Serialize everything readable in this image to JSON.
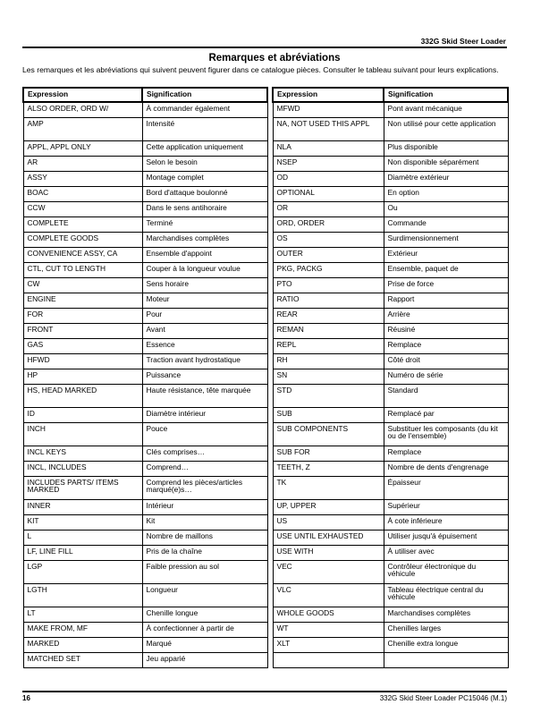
{
  "header": {
    "title": "332G Skid Steer Loader"
  },
  "page_title": "Remarques et abréviations",
  "intro": "Les remarques et les abréviations qui suivent peuvent figurer dans ce catalogue pièces.  Consulter le tableau suivant pour leurs explications.",
  "columns": {
    "expression": "Expression",
    "signification": "Signification"
  },
  "rows": [
    {
      "l": [
        "ALSO ORDER, ORD W/",
        "À commander également"
      ],
      "r": [
        "MFWD",
        "Pont avant mécanique"
      ]
    },
    {
      "l": [
        "AMP",
        "Intensité"
      ],
      "r": [
        "NA, NOT USED THIS APPL",
        "Non utilisé pour cette application"
      ],
      "tall": true
    },
    {
      "l": [
        "APPL, APPL ONLY",
        "Cette application uniquement"
      ],
      "r": [
        "NLA",
        "Plus disponible"
      ]
    },
    {
      "l": [
        "AR",
        "Selon le besoin"
      ],
      "r": [
        "NSEP",
        "Non disponible séparément"
      ]
    },
    {
      "l": [
        "ASSY",
        "Montage complet"
      ],
      "r": [
        "OD",
        "Diamètre extérieur"
      ]
    },
    {
      "l": [
        "BOAC",
        "Bord d'attaque boulonné"
      ],
      "r": [
        "OPTIONAL",
        "En option"
      ]
    },
    {
      "l": [
        "CCW",
        "Dans le sens antihoraire"
      ],
      "r": [
        "OR",
        "Ou"
      ]
    },
    {
      "l": [
        "COMPLETE",
        "Terminé"
      ],
      "r": [
        "ORD, ORDER",
        "Commande"
      ]
    },
    {
      "l": [
        "COMPLETE GOODS",
        "Marchandises complètes"
      ],
      "r": [
        "OS",
        "Surdimensionnement"
      ]
    },
    {
      "l": [
        "CONVENIENCE ASSY, CA",
        "Ensemble d'appoint"
      ],
      "r": [
        "OUTER",
        "Extérieur"
      ]
    },
    {
      "l": [
        "CTL, CUT TO LENGTH",
        "Couper à la longueur voulue"
      ],
      "r": [
        "PKG, PACKG",
        "Ensemble, paquet de"
      ]
    },
    {
      "l": [
        "CW",
        "Sens horaire"
      ],
      "r": [
        "PTO",
        "Prise de force"
      ]
    },
    {
      "l": [
        "ENGINE",
        "Moteur"
      ],
      "r": [
        "RATIO",
        "Rapport"
      ]
    },
    {
      "l": [
        "FOR",
        "Pour"
      ],
      "r": [
        "REAR",
        "Arrière"
      ]
    },
    {
      "l": [
        "FRONT",
        "Avant"
      ],
      "r": [
        "REMAN",
        "Réusiné"
      ]
    },
    {
      "l": [
        "GAS",
        "Essence"
      ],
      "r": [
        "REPL",
        "Remplace"
      ]
    },
    {
      "l": [
        "HFWD",
        "Traction avant hydrostatique"
      ],
      "r": [
        "RH",
        "Côté droit"
      ]
    },
    {
      "l": [
        "HP",
        "Puissance"
      ],
      "r": [
        "SN",
        "Numéro de série"
      ]
    },
    {
      "l": [
        "HS, HEAD MARKED",
        "Haute résistance, tête marquée"
      ],
      "r": [
        "STD",
        "Standard"
      ],
      "tall": true
    },
    {
      "l": [
        "ID",
        "Diamètre intérieur"
      ],
      "r": [
        "SUB",
        "Remplacé par"
      ]
    },
    {
      "l": [
        "INCH",
        "Pouce"
      ],
      "r": [
        "SUB COMPONENTS",
        "Substituer les composants (du kit ou de l'ensemble)"
      ],
      "tall": true
    },
    {
      "l": [
        "INCL KEYS",
        "Clés comprises…"
      ],
      "r": [
        "SUB FOR",
        "Remplace"
      ]
    },
    {
      "l": [
        "INCL, INCLUDES",
        "Comprend…"
      ],
      "r": [
        "TEETH, Z",
        "Nombre de dents d'engrenage"
      ]
    },
    {
      "l": [
        "INCLUDES PARTS/ ITEMS MARKED",
        "Comprend les pièces/articles marqué(e)s…"
      ],
      "r": [
        "TK",
        "Épaisseur"
      ],
      "tall": true
    },
    {
      "l": [
        "INNER",
        "Intérieur"
      ],
      "r": [
        "UP, UPPER",
        "Supérieur"
      ]
    },
    {
      "l": [
        "KIT",
        "Kit"
      ],
      "r": [
        "US",
        "À cote inférieure"
      ]
    },
    {
      "l": [
        "L",
        "Nombre de maillons"
      ],
      "r": [
        "USE UNTIL EXHAUSTED",
        "Utiliser jusqu'á épuisement"
      ]
    },
    {
      "l": [
        "LF, LINE FILL",
        "Pris de la chaîne"
      ],
      "r": [
        "USE WITH",
        "À utiliser avec"
      ]
    },
    {
      "l": [
        "LGP",
        "Faible pression au sol"
      ],
      "r": [
        "VEC",
        "Contrôleur électronique du véhicule"
      ],
      "tall": true
    },
    {
      "l": [
        "LGTH",
        "Longueur"
      ],
      "r": [
        "VLC",
        "Tableau électrique central du véhicule"
      ],
      "tall": true
    },
    {
      "l": [
        "LT",
        "Chenille longue"
      ],
      "r": [
        "WHOLE GOODS",
        "Marchandises complètes"
      ]
    },
    {
      "l": [
        "MAKE FROM, MF",
        "À confectionner à partir de"
      ],
      "r": [
        "WT",
        "Chenilles larges"
      ]
    },
    {
      "l": [
        "MARKED",
        "Marqué"
      ],
      "r": [
        "XLT",
        "Chenille extra longue"
      ]
    },
    {
      "l": [
        "MATCHED SET",
        "Jeu apparié"
      ],
      "r": [
        "",
        ""
      ]
    }
  ],
  "footer": {
    "page": "16",
    "text": "332G Skid Steer Loader   PC15046   (M.1)"
  }
}
